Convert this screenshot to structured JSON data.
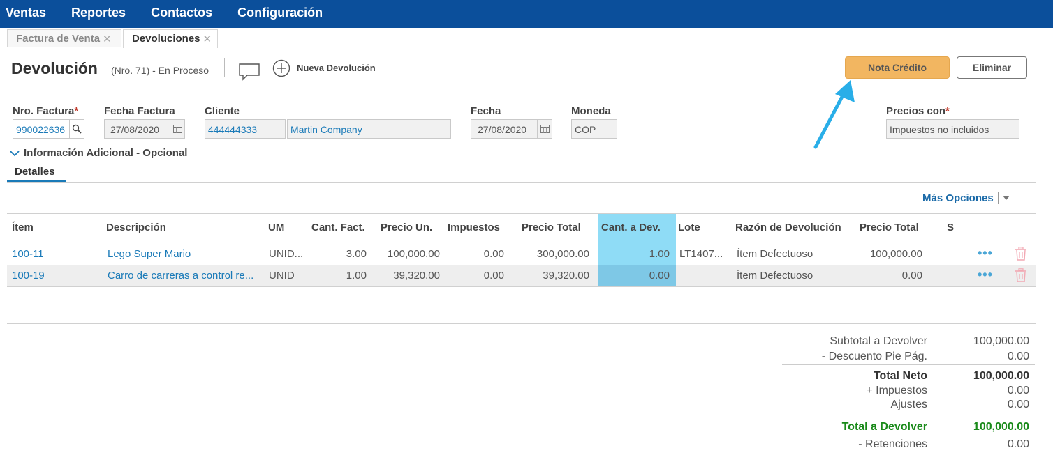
{
  "topnav": {
    "items": [
      "Ventas",
      "Reportes",
      "Contactos",
      "Configuración"
    ]
  },
  "tabs": [
    {
      "label": "Factura de Venta",
      "close": "✕"
    },
    {
      "label": "Devoluciones",
      "close": "✕"
    }
  ],
  "header": {
    "title": "Devolución",
    "subtitle": "(Nro. 71) - En Proceso",
    "new_label": "Nueva Devolución",
    "nota_credito": "Nota Crédito",
    "eliminar": "Eliminar"
  },
  "fields": {
    "nro_factura_label": "Nro. Factura",
    "nro_factura": "990022636",
    "fecha_factura_label": "Fecha Factura",
    "fecha_factura": "27/08/2020",
    "cliente_label": "Cliente",
    "cliente_id": "444444333",
    "cliente_name": "Martin Company",
    "fecha_label": "Fecha",
    "fecha": "27/08/2020",
    "moneda_label": "Moneda",
    "moneda": "COP",
    "precios_label": "Precios con",
    "precios": "Impuestos no incluidos",
    "required_mark": "*"
  },
  "info_adicional": "Información Adicional - Opcional",
  "detalles_tab": "Detalles",
  "mas_opciones": "Más Opciones",
  "table": {
    "columns": [
      "Ítem",
      "Descripción",
      "UM",
      "Cant. Fact.",
      "Precio Un.",
      "Impuestos",
      "Precio Total",
      "Cant. a Dev.",
      "Lote",
      "Razón de Devolución",
      "Precio Total",
      "S"
    ],
    "rows": [
      {
        "item": "100-11",
        "desc": "Lego Super Mario",
        "um": "UNID...",
        "cant_fact": "3.00",
        "precio_un": "100,000.00",
        "impuestos": "0.00",
        "precio_total": "300,000.00",
        "cant_dev": "1.00",
        "lote": "LT1407...",
        "razon": "Ítem Defectuoso",
        "precio_total_dev": "100,000.00",
        "more": "•••"
      },
      {
        "item": "100-19",
        "desc": "Carro de carreras a control re...",
        "um": "UNID",
        "cant_fact": "1.00",
        "precio_un": "39,320.00",
        "impuestos": "0.00",
        "precio_total": "39,320.00",
        "cant_dev": "0.00",
        "lote": "",
        "razon": "Ítem Defectuoso",
        "precio_total_dev": "0.00",
        "more": "•••"
      }
    ]
  },
  "totals": {
    "subtotal_label": "Subtotal a Devolver",
    "subtotal": "100,000.00",
    "descuento_label": "- Descuento Pie Pág.",
    "descuento": "0.00",
    "neto_label": "Total Neto",
    "neto": "100,000.00",
    "impuestos_label": "+ Impuestos",
    "impuestos": "0.00",
    "ajustes_label": "Ajustes",
    "ajustes": "0.00",
    "total_label": "Total a Devolver",
    "total": "100,000.00",
    "retenciones_label": "- Retenciones",
    "retenciones": "0.00"
  },
  "colors": {
    "nav": "#0b4f9b",
    "accent": "#1a7ab8",
    "highlight": "#8fdcf6",
    "nota_btn": "#f2b661",
    "total_green": "#1a8a1a"
  }
}
